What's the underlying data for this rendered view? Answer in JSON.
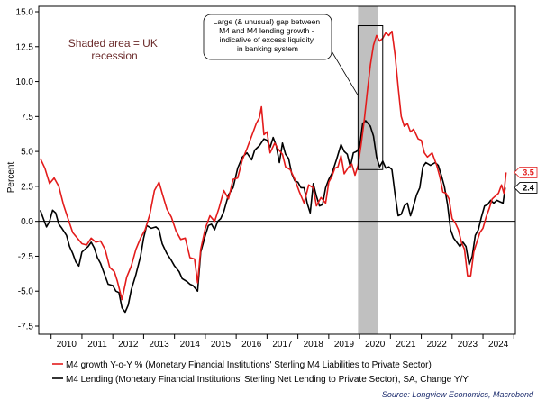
{
  "chart_data": {
    "type": "line",
    "ylabel": "Percent",
    "ylim": [
      -7.5,
      15.0
    ],
    "yticks": [
      15.0,
      12.5,
      10.0,
      7.5,
      5.0,
      2.5,
      0.0,
      -2.5,
      -5.0,
      -7.5
    ],
    "ytick_labels": [
      "15.0",
      "12.5",
      "10.0",
      "7.5",
      "5.0",
      "2.5",
      "0.0",
      "-2.5",
      "-5.0",
      "-7.5"
    ],
    "xlim": [
      2009.6,
      2025.05
    ],
    "xtick_labels": [
      "2010",
      "2011",
      "2012",
      "2013",
      "2014",
      "2015",
      "2016",
      "2017",
      "2018",
      "2019",
      "2020",
      "2021",
      "2022",
      "2023",
      "2024"
    ],
    "recession": [
      2019.95,
      2020.6
    ],
    "shaded_note": "Shaded area = UK recession",
    "annotation": "Large (& unusual) gap between M4 and M4 lending growth - indicative of excess liquidity in banking system",
    "source": "Source: Longview Economics, Macrobond",
    "series": [
      {
        "name": "M4 growth Y-o-Y % (Monetary Financial Institutions' Sterling M4 Liabilities to Private Sector)",
        "color": "#e31b1b",
        "end_label": "3.5",
        "points": [
          [
            2009.65,
            4.5
          ],
          [
            2009.8,
            3.8
          ],
          [
            2009.95,
            2.7
          ],
          [
            2010.1,
            3.1
          ],
          [
            2010.25,
            2.5
          ],
          [
            2010.4,
            1.2
          ],
          [
            2010.55,
            0.2
          ],
          [
            2010.7,
            -0.8
          ],
          [
            2010.85,
            -1.2
          ],
          [
            2011.0,
            -1.6
          ],
          [
            2011.15,
            -1.7
          ],
          [
            2011.3,
            -1.2
          ],
          [
            2011.45,
            -1.5
          ],
          [
            2011.6,
            -1.4
          ],
          [
            2011.75,
            -2.0
          ],
          [
            2011.9,
            -3.3
          ],
          [
            2012.05,
            -3.6
          ],
          [
            2012.15,
            -4.3
          ],
          [
            2012.3,
            -5.6
          ],
          [
            2012.45,
            -4.0
          ],
          [
            2012.6,
            -3.2
          ],
          [
            2012.75,
            -2.0
          ],
          [
            2012.9,
            -1.2
          ],
          [
            2013.05,
            -0.6
          ],
          [
            2013.2,
            0.5
          ],
          [
            2013.35,
            2.2
          ],
          [
            2013.5,
            2.8
          ],
          [
            2013.6,
            2.0
          ],
          [
            2013.75,
            0.9
          ],
          [
            2013.9,
            0.3
          ],
          [
            2014.05,
            -0.7
          ],
          [
            2014.2,
            -1.3
          ],
          [
            2014.35,
            -1.2
          ],
          [
            2014.5,
            -2.6
          ],
          [
            2014.65,
            -2.7
          ],
          [
            2014.75,
            -4.4
          ],
          [
            2014.85,
            -2.0
          ],
          [
            2015.0,
            -0.5
          ],
          [
            2015.15,
            0.4
          ],
          [
            2015.3,
            0.0
          ],
          [
            2015.45,
            1.0
          ],
          [
            2015.6,
            2.2
          ],
          [
            2015.75,
            1.6
          ],
          [
            2015.9,
            3.0
          ],
          [
            2016.05,
            3.1
          ],
          [
            2016.2,
            4.4
          ],
          [
            2016.35,
            5.2
          ],
          [
            2016.5,
            6.1
          ],
          [
            2016.65,
            7.0
          ],
          [
            2016.75,
            7.4
          ],
          [
            2016.82,
            8.2
          ],
          [
            2016.9,
            6.2
          ],
          [
            2017.0,
            6.4
          ],
          [
            2017.1,
            4.9
          ],
          [
            2017.25,
            5.6
          ],
          [
            2017.35,
            5.2
          ],
          [
            2017.5,
            4.8
          ],
          [
            2017.6,
            3.9
          ],
          [
            2017.75,
            3.7
          ],
          [
            2017.9,
            3.0
          ],
          [
            2018.05,
            2.1
          ],
          [
            2018.2,
            1.3
          ],
          [
            2018.35,
            2.6
          ],
          [
            2018.5,
            2.4
          ],
          [
            2018.6,
            1.1
          ],
          [
            2018.75,
            1.7
          ],
          [
            2018.9,
            1.3
          ],
          [
            2019.0,
            2.8
          ],
          [
            2019.1,
            3.2
          ],
          [
            2019.2,
            3.8
          ],
          [
            2019.3,
            3.9
          ],
          [
            2019.4,
            4.7
          ],
          [
            2019.5,
            3.4
          ],
          [
            2019.65,
            3.9
          ],
          [
            2019.75,
            4.1
          ],
          [
            2019.85,
            3.3
          ],
          [
            2019.95,
            4.0
          ],
          [
            2020.05,
            5.5
          ],
          [
            2020.15,
            7.2
          ],
          [
            2020.25,
            9.3
          ],
          [
            2020.35,
            11.2
          ],
          [
            2020.45,
            12.6
          ],
          [
            2020.55,
            13.3
          ],
          [
            2020.65,
            12.9
          ],
          [
            2020.75,
            13.1
          ],
          [
            2020.85,
            13.5
          ],
          [
            2020.95,
            13.3
          ],
          [
            2021.05,
            13.6
          ],
          [
            2021.15,
            11.9
          ],
          [
            2021.25,
            9.6
          ],
          [
            2021.35,
            7.5
          ],
          [
            2021.45,
            6.8
          ],
          [
            2021.55,
            7.0
          ],
          [
            2021.65,
            6.4
          ],
          [
            2021.75,
            6.6
          ],
          [
            2021.9,
            5.9
          ],
          [
            2022.0,
            5.8
          ],
          [
            2022.1,
            4.9
          ],
          [
            2022.2,
            4.6
          ],
          [
            2022.35,
            4.9
          ],
          [
            2022.5,
            4.0
          ],
          [
            2022.6,
            3.2
          ],
          [
            2022.7,
            2.1
          ],
          [
            2022.8,
            2.0
          ],
          [
            2022.9,
            1.6
          ],
          [
            2023.0,
            0.2
          ],
          [
            2023.1,
            -0.1
          ],
          [
            2023.2,
            -0.6
          ],
          [
            2023.3,
            -1.5
          ],
          [
            2023.4,
            -2.0
          ],
          [
            2023.5,
            -3.9
          ],
          [
            2023.6,
            -3.9
          ],
          [
            2023.7,
            -2.2
          ],
          [
            2023.8,
            -1.5
          ],
          [
            2023.9,
            -0.8
          ],
          [
            2024.0,
            -0.5
          ],
          [
            2024.1,
            0.3
          ],
          [
            2024.2,
            0.9
          ],
          [
            2024.3,
            1.6
          ],
          [
            2024.4,
            1.8
          ],
          [
            2024.5,
            2.0
          ],
          [
            2024.6,
            2.6
          ],
          [
            2024.68,
            2.0
          ],
          [
            2024.75,
            3.5
          ]
        ]
      },
      {
        "name": "M4 Lending (Monetary Financial Institutions' Sterling Net Lending to Private Sector), SA, Change Y/Y",
        "color": "#000000",
        "end_label": "2.4",
        "points": [
          [
            2009.65,
            0.8
          ],
          [
            2009.75,
            0.2
          ],
          [
            2009.85,
            -0.4
          ],
          [
            2009.95,
            0.0
          ],
          [
            2010.05,
            0.8
          ],
          [
            2010.15,
            0.6
          ],
          [
            2010.25,
            -0.2
          ],
          [
            2010.35,
            -0.5
          ],
          [
            2010.5,
            -1.0
          ],
          [
            2010.6,
            -1.8
          ],
          [
            2010.7,
            -2.3
          ],
          [
            2010.8,
            -2.9
          ],
          [
            2010.9,
            -3.2
          ],
          [
            2011.0,
            -2.2
          ],
          [
            2011.1,
            -2.0
          ],
          [
            2011.2,
            -1.8
          ],
          [
            2011.3,
            -1.5
          ],
          [
            2011.4,
            -1.9
          ],
          [
            2011.5,
            -2.6
          ],
          [
            2011.6,
            -3.0
          ],
          [
            2011.7,
            -3.6
          ],
          [
            2011.85,
            -4.5
          ],
          [
            2012.0,
            -4.6
          ],
          [
            2012.1,
            -5.0
          ],
          [
            2012.2,
            -5.1
          ],
          [
            2012.3,
            -6.2
          ],
          [
            2012.4,
            -6.5
          ],
          [
            2012.5,
            -6.0
          ],
          [
            2012.6,
            -4.9
          ],
          [
            2012.75,
            -3.8
          ],
          [
            2012.9,
            -2.5
          ],
          [
            2013.0,
            -1.2
          ],
          [
            2013.1,
            -0.3
          ],
          [
            2013.25,
            -0.5
          ],
          [
            2013.4,
            -0.4
          ],
          [
            2013.5,
            -0.6
          ],
          [
            2013.6,
            -1.6
          ],
          [
            2013.75,
            -2.3
          ],
          [
            2013.9,
            -2.8
          ],
          [
            2014.0,
            -3.2
          ],
          [
            2014.15,
            -3.6
          ],
          [
            2014.25,
            -4.1
          ],
          [
            2014.4,
            -4.3
          ],
          [
            2014.5,
            -4.5
          ],
          [
            2014.6,
            -4.6
          ],
          [
            2014.75,
            -5.0
          ],
          [
            2014.85,
            -2.2
          ],
          [
            2015.0,
            -1.0
          ],
          [
            2015.1,
            -0.3
          ],
          [
            2015.2,
            -0.2
          ],
          [
            2015.3,
            -0.6
          ],
          [
            2015.4,
            0.0
          ],
          [
            2015.5,
            0.2
          ],
          [
            2015.6,
            0.7
          ],
          [
            2015.75,
            1.9
          ],
          [
            2015.9,
            2.4
          ],
          [
            2016.05,
            3.8
          ],
          [
            2016.2,
            4.6
          ],
          [
            2016.35,
            4.9
          ],
          [
            2016.5,
            4.4
          ],
          [
            2016.6,
            5.1
          ],
          [
            2016.75,
            5.4
          ],
          [
            2016.9,
            5.9
          ],
          [
            2017.0,
            5.8
          ],
          [
            2017.1,
            5.3
          ],
          [
            2017.2,
            6.0
          ],
          [
            2017.3,
            5.4
          ],
          [
            2017.4,
            4.2
          ],
          [
            2017.5,
            5.6
          ],
          [
            2017.6,
            4.8
          ],
          [
            2017.7,
            4.5
          ],
          [
            2017.8,
            3.4
          ],
          [
            2017.9,
            2.9
          ],
          [
            2018.0,
            2.8
          ],
          [
            2018.1,
            2.4
          ],
          [
            2018.2,
            2.4
          ],
          [
            2018.3,
            1.3
          ],
          [
            2018.4,
            0.6
          ],
          [
            2018.5,
            2.7
          ],
          [
            2018.6,
            1.8
          ],
          [
            2018.7,
            1.1
          ],
          [
            2018.8,
            1.2
          ],
          [
            2018.9,
            2.4
          ],
          [
            2019.0,
            3.0
          ],
          [
            2019.1,
            3.4
          ],
          [
            2019.25,
            4.4
          ],
          [
            2019.4,
            5.5
          ],
          [
            2019.5,
            5.0
          ],
          [
            2019.6,
            4.8
          ],
          [
            2019.7,
            3.9
          ],
          [
            2019.8,
            4.9
          ],
          [
            2019.9,
            5.0
          ],
          [
            2020.0,
            5.3
          ],
          [
            2020.1,
            7.0
          ],
          [
            2020.2,
            7.2
          ],
          [
            2020.35,
            6.8
          ],
          [
            2020.45,
            6.1
          ],
          [
            2020.55,
            4.6
          ],
          [
            2020.65,
            3.9
          ],
          [
            2020.75,
            4.3
          ],
          [
            2020.85,
            3.8
          ],
          [
            2020.95,
            3.9
          ],
          [
            2021.05,
            3.7
          ],
          [
            2021.15,
            1.9
          ],
          [
            2021.25,
            0.4
          ],
          [
            2021.35,
            0.5
          ],
          [
            2021.45,
            1.1
          ],
          [
            2021.55,
            1.3
          ],
          [
            2021.65,
            0.4
          ],
          [
            2021.75,
            1.1
          ],
          [
            2021.85,
            1.9
          ],
          [
            2021.95,
            2.4
          ],
          [
            2022.05,
            3.9
          ],
          [
            2022.15,
            4.2
          ],
          [
            2022.3,
            4.0
          ],
          [
            2022.45,
            4.2
          ],
          [
            2022.55,
            4.0
          ],
          [
            2022.65,
            3.3
          ],
          [
            2022.75,
            2.5
          ],
          [
            2022.85,
            1.2
          ],
          [
            2022.95,
            -0.6
          ],
          [
            2023.05,
            -1.2
          ],
          [
            2023.15,
            -1.5
          ],
          [
            2023.25,
            -1.8
          ],
          [
            2023.35,
            -1.5
          ],
          [
            2023.45,
            -1.8
          ],
          [
            2023.55,
            -3.1
          ],
          [
            2023.65,
            -2.5
          ],
          [
            2023.75,
            -1.0
          ],
          [
            2023.85,
            -0.6
          ],
          [
            2023.95,
            0.3
          ],
          [
            2024.05,
            1.1
          ],
          [
            2024.15,
            1.2
          ],
          [
            2024.25,
            1.5
          ],
          [
            2024.35,
            1.3
          ],
          [
            2024.45,
            1.5
          ],
          [
            2024.55,
            1.4
          ],
          [
            2024.65,
            1.3
          ],
          [
            2024.72,
            2.4
          ]
        ]
      }
    ]
  }
}
